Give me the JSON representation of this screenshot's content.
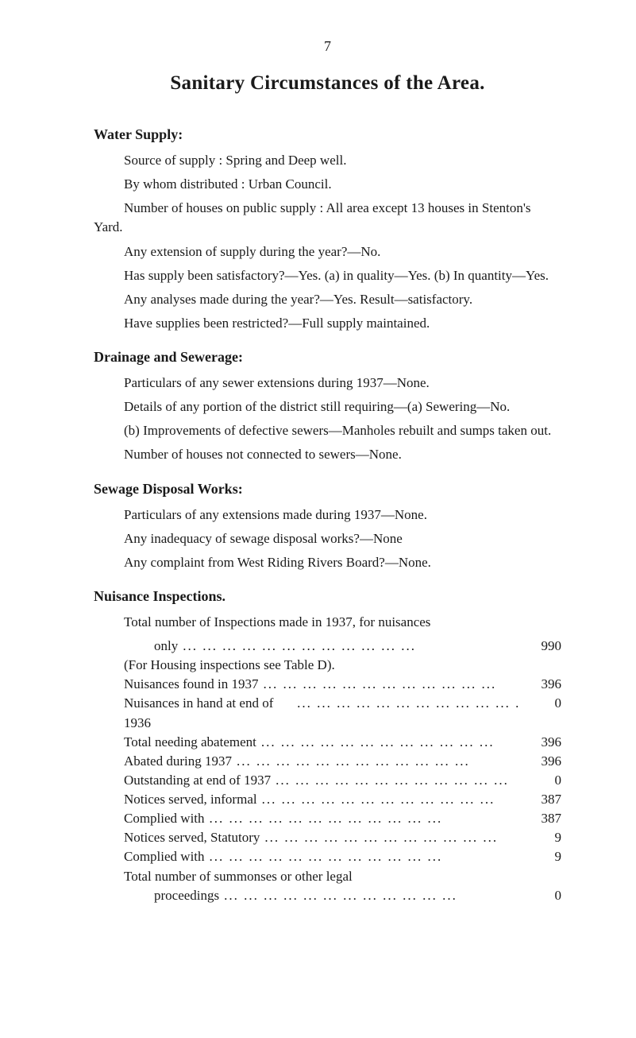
{
  "page_number": "7",
  "title": "Sanitary Circumstances of the Area.",
  "water_supply": {
    "heading": "Water Supply:",
    "p1": "Source of supply : Spring and Deep well.",
    "p2": "By whom distributed : Urban Council.",
    "p3": "Number of houses on public supply : All area except 13 houses in Stenton's Yard.",
    "p4": "Any extension of supply during the year?—No.",
    "p5": "Has supply been satisfactory?—Yes. (a) in quality—Yes. (b) In quantity—Yes.",
    "p6": "Any analyses made during the year?—Yes. Result—satisfactory.",
    "p7": "Have supplies been restricted?—Full supply maintained."
  },
  "drainage": {
    "heading": "Drainage and Sewerage:",
    "p1": "Particulars of any sewer extensions during 1937—None.",
    "p2": "Details of any portion of the district still requiring—(a) Sewering—No.",
    "p3": "(b) Improvements of defective sewers—Manholes rebuilt and sumps taken out.",
    "p4": "Number of houses not connected to sewers—None."
  },
  "sewage": {
    "heading": "Sewage Disposal Works:",
    "p1": "Particulars of any extensions made during 1937—None.",
    "p2": "Any inadequacy of sewage disposal works?—None",
    "p3": "Any complaint from West Riding Rivers Board?—None."
  },
  "nuisance": {
    "heading": "Nuisance Inspections.",
    "intro": "Total number of Inspections made in 1937, for nuisances",
    "items": [
      {
        "label": "only",
        "value": "990",
        "indent": "more"
      },
      {
        "label": "(For Housing inspections see Table D).",
        "value": "",
        "indent": "one",
        "nofill": true
      },
      {
        "label": "Nuisances found in 1937",
        "value": "396",
        "indent": "one"
      },
      {
        "label": "Nuisances in hand at end of 1936",
        "value": "0",
        "indent": "one"
      },
      {
        "label": "Total needing abatement",
        "value": "396",
        "indent": "one"
      },
      {
        "label": "Abated during 1937",
        "value": "396",
        "indent": "one"
      },
      {
        "label": "Outstanding at end of 1937",
        "value": "0",
        "indent": "one"
      },
      {
        "label": "Notices served, informal",
        "value": "387",
        "indent": "one"
      },
      {
        "label": "Complied with",
        "value": "387",
        "indent": "one"
      },
      {
        "label": "Notices served, Statutory",
        "value": "9",
        "indent": "one"
      },
      {
        "label": "Complied with",
        "value": "9",
        "indent": "one"
      },
      {
        "label": "Total number of summonses or other legal",
        "value": "",
        "indent": "one",
        "nofill": true
      },
      {
        "label": "proceedings",
        "value": "0",
        "indent": "more"
      }
    ]
  },
  "dots": "...  ...  ...  ...  ...  ...  ...  ...  ...  ...  ...  ..."
}
